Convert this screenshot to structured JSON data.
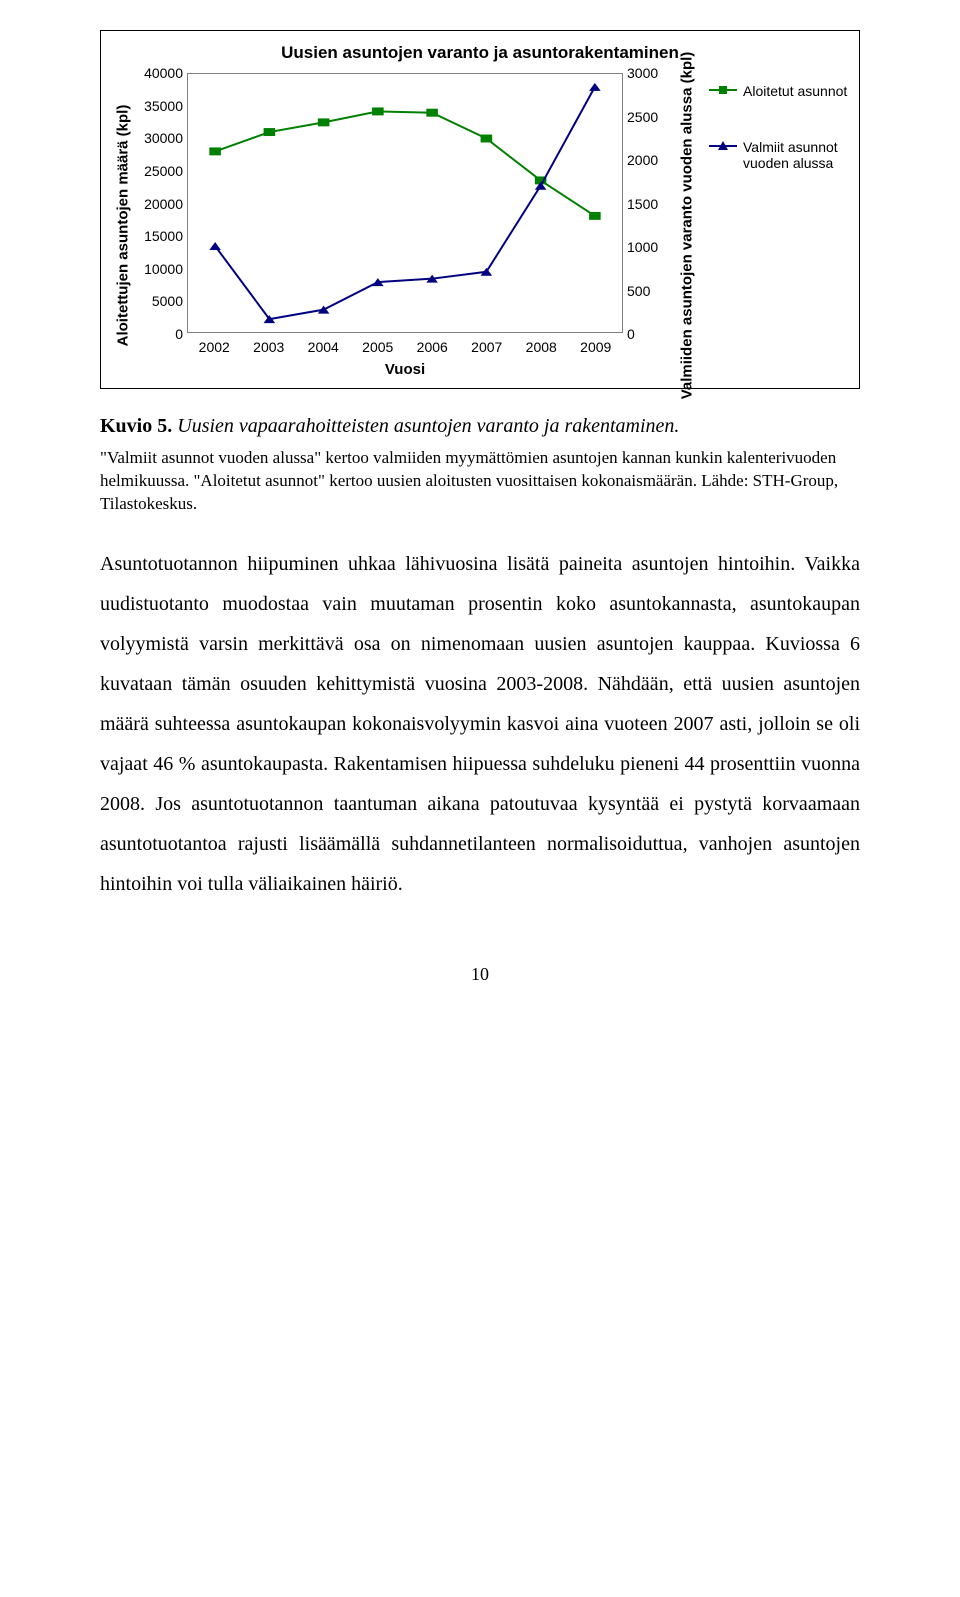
{
  "chart": {
    "title": "Uusien asuntojen varanto ja asuntorakentaminen",
    "x_label": "Vuosi",
    "y1_label": "Aloitettujen asuntojen määrä (kpl)",
    "y2_label": "Valmiiden asuntojen varanto vuoden alussa (kpl)",
    "y1_min": 0,
    "y1_max": 40000,
    "y1_step": 5000,
    "y2_min": 0,
    "y2_max": 3000,
    "y2_step": 500,
    "categories": [
      "2002",
      "2003",
      "2004",
      "2005",
      "2006",
      "2007",
      "2008",
      "2009"
    ],
    "series": [
      {
        "name": "Aloitetut asunnot",
        "type": "line-square",
        "color": "#008000",
        "axis": "y1",
        "values": [
          28000,
          31000,
          32500,
          34200,
          34000,
          30000,
          23500,
          18000
        ]
      },
      {
        "name": "Valmiit asunnot vuoden alussa",
        "type": "line-triangle",
        "color": "#000080",
        "axis": "y2",
        "values": [
          1000,
          150,
          260,
          580,
          620,
          700,
          1700,
          2850
        ]
      }
    ],
    "plot_border_color": "#808080",
    "line_width": 2,
    "marker_size": 8,
    "background_color": "#ffffff"
  },
  "caption": {
    "label": "Kuvio 5.",
    "title": "Uusien vapaarahoitteisten asuntojen varanto ja rakentaminen."
  },
  "source_note": "\"Valmiit asunnot vuoden alussa\" kertoo valmiiden myymättömien asuntojen kannan kunkin kalenterivuoden helmikuussa. \"Aloitetut asunnot\" kertoo uusien aloitusten vuosittaisen kokonaismäärän. Lähde: STH-Group, Tilastokeskus.",
  "body_text": "Asuntotuotannon hiipuminen uhkaa lähivuosina lisätä paineita asuntojen hintoihin. Vaikka uudistuotanto muodostaa vain muutaman prosentin koko asuntokannasta, asuntokaupan volyymistä varsin merkittävä osa on nimenomaan uusien asuntojen kauppaa. Kuviossa 6 kuvataan tämän osuuden kehittymistä vuosina 2003-2008. Nähdään, että uusien asuntojen määrä suhteessa asuntokaupan kokonaisvolyymin kasvoi aina vuoteen 2007 asti, jolloin se oli vajaat 46 % asuntokaupasta. Rakentamisen hiipuessa suhdeluku pieneni 44 prosenttiin vuonna 2008. Jos asuntotuotannon taantuman aikana patoutuvaa kysyntää ei pystytä korvaamaan asuntotuotantoa rajusti lisäämällä suhdannetilanteen normalisoiduttua, vanhojen asuntojen hintoihin voi tulla väliaikainen häiriö.",
  "page_number": "10",
  "y1_tick_labels": [
    "40000",
    "35000",
    "30000",
    "25000",
    "20000",
    "15000",
    "10000",
    "5000",
    "0"
  ],
  "y2_tick_labels": [
    "3000",
    "2500",
    "2000",
    "1500",
    "1000",
    "500",
    "0"
  ]
}
